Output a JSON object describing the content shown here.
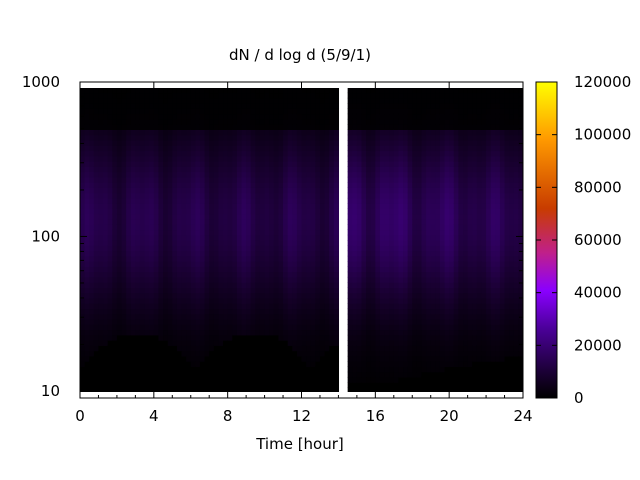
{
  "chart_data": {
    "type": "heatmap",
    "title": "dN / d log d (5/9/1)",
    "xlabel": "Time [hour]",
    "ylabel": "",
    "x_range": [
      0,
      24
    ],
    "y_range": [
      9,
      1000
    ],
    "y_scale": "log",
    "x_ticks": [
      0,
      4,
      8,
      12,
      16,
      20,
      24
    ],
    "x_tick_labels": [
      "0",
      "4",
      "8",
      "12",
      "16",
      "20",
      "24"
    ],
    "y_ticks": [
      10,
      100,
      1000
    ],
    "y_tick_labels": [
      "10",
      "100",
      "1000"
    ],
    "colorbar": {
      "range": [
        0,
        120000
      ],
      "ticks": [
        0,
        20000,
        40000,
        60000,
        80000,
        100000,
        120000
      ],
      "tick_labels": [
        "0",
        "20000",
        "40000",
        "60000",
        "80000",
        "100000",
        "120000"
      ],
      "palette": [
        "#000000",
        "#1a0033",
        "#4b0099",
        "#8a00ff",
        "#c0208a",
        "#c83c00",
        "#ff9a00",
        "#ffff00"
      ]
    },
    "data_gap_hours": [
      14.0,
      14.4
    ],
    "peak_diameter_approx": 130,
    "peak_value_approx": 15000,
    "grid": false,
    "legend": "colorbar-right"
  }
}
